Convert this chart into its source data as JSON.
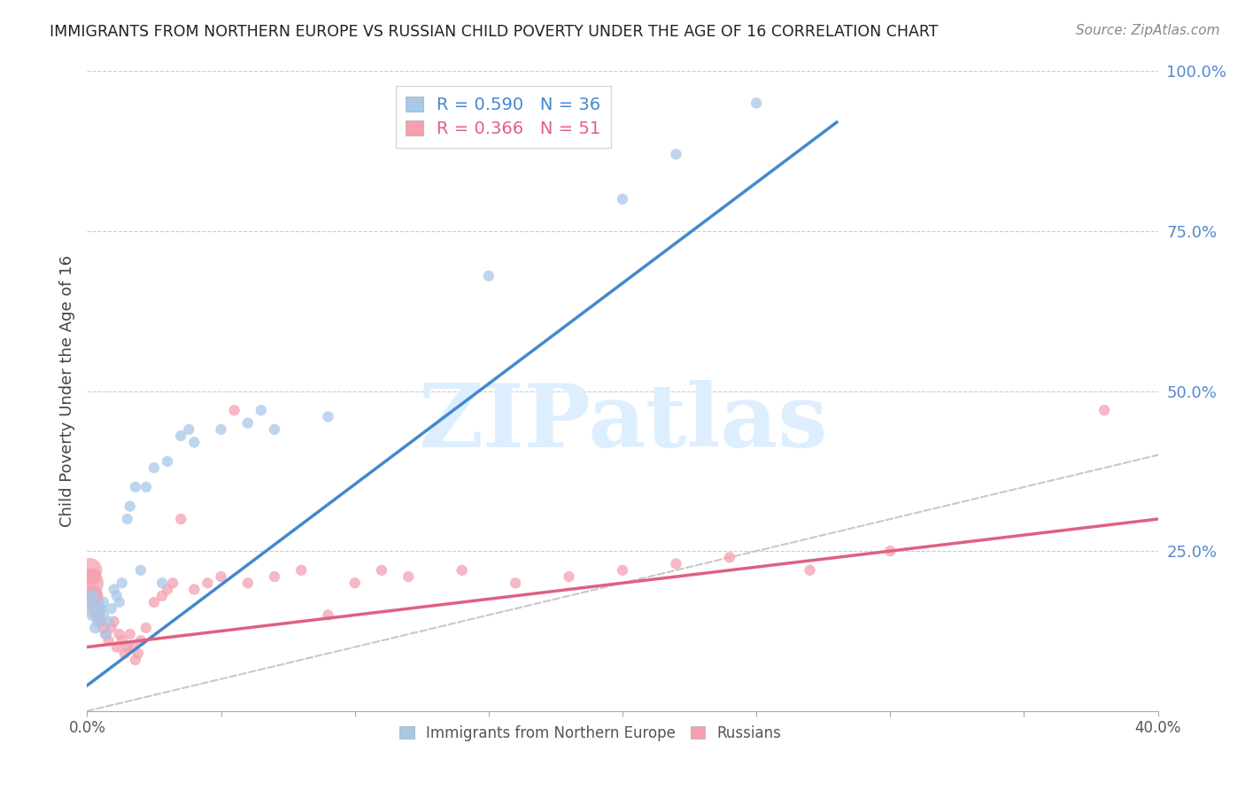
{
  "title": "IMMIGRANTS FROM NORTHERN EUROPE VS RUSSIAN CHILD POVERTY UNDER THE AGE OF 16 CORRELATION CHART",
  "source": "Source: ZipAtlas.com",
  "ylabel": "Child Poverty Under the Age of 16",
  "xlim": [
    0.0,
    0.4
  ],
  "ylim": [
    0.0,
    1.0
  ],
  "blue_R": 0.59,
  "blue_N": 36,
  "pink_R": 0.366,
  "pink_N": 51,
  "legend_label_blue": "Immigrants from Northern Europe",
  "legend_label_pink": "Russians",
  "blue_color": "#a8c8e8",
  "pink_color": "#f4a0b0",
  "blue_line_color": "#4488cc",
  "pink_line_color": "#e06080",
  "right_axis_color": "#5588cc",
  "watermark_color": "#ddeeff",
  "blue_line_x0": 0.0,
  "blue_line_y0": 0.04,
  "blue_line_x1": 0.28,
  "blue_line_y1": 0.92,
  "pink_line_x0": 0.0,
  "pink_line_y0": 0.1,
  "pink_line_x1": 0.4,
  "pink_line_y1": 0.3,
  "blue_scatter_x": [
    0.001,
    0.002,
    0.002,
    0.003,
    0.003,
    0.004,
    0.005,
    0.006,
    0.006,
    0.007,
    0.008,
    0.009,
    0.01,
    0.011,
    0.012,
    0.013,
    0.015,
    0.016,
    0.018,
    0.02,
    0.022,
    0.025,
    0.028,
    0.03,
    0.035,
    0.038,
    0.04,
    0.05,
    0.06,
    0.065,
    0.07,
    0.09,
    0.15,
    0.2,
    0.22,
    0.25
  ],
  "blue_scatter_y": [
    0.17,
    0.18,
    0.15,
    0.16,
    0.13,
    0.14,
    0.16,
    0.15,
    0.17,
    0.12,
    0.14,
    0.16,
    0.19,
    0.18,
    0.17,
    0.2,
    0.3,
    0.32,
    0.35,
    0.22,
    0.35,
    0.38,
    0.2,
    0.39,
    0.43,
    0.44,
    0.42,
    0.44,
    0.45,
    0.47,
    0.44,
    0.46,
    0.68,
    0.8,
    0.87,
    0.95
  ],
  "blue_scatter_sizes": [
    120,
    100,
    100,
    90,
    90,
    90,
    85,
    85,
    85,
    80,
    80,
    80,
    80,
    80,
    80,
    80,
    80,
    80,
    80,
    80,
    80,
    80,
    80,
    80,
    80,
    80,
    80,
    80,
    80,
    80,
    80,
    80,
    80,
    80,
    80,
    80
  ],
  "pink_scatter_x": [
    0.001,
    0.001,
    0.002,
    0.002,
    0.003,
    0.003,
    0.004,
    0.004,
    0.005,
    0.005,
    0.006,
    0.007,
    0.008,
    0.009,
    0.01,
    0.011,
    0.012,
    0.013,
    0.014,
    0.015,
    0.016,
    0.017,
    0.018,
    0.019,
    0.02,
    0.022,
    0.025,
    0.028,
    0.03,
    0.032,
    0.035,
    0.04,
    0.045,
    0.05,
    0.055,
    0.06,
    0.07,
    0.08,
    0.09,
    0.1,
    0.11,
    0.12,
    0.14,
    0.16,
    0.18,
    0.2,
    0.22,
    0.24,
    0.27,
    0.3,
    0.38
  ],
  "pink_scatter_y": [
    0.2,
    0.22,
    0.18,
    0.21,
    0.16,
    0.18,
    0.15,
    0.17,
    0.14,
    0.16,
    0.13,
    0.12,
    0.11,
    0.13,
    0.14,
    0.1,
    0.12,
    0.11,
    0.09,
    0.1,
    0.12,
    0.1,
    0.08,
    0.09,
    0.11,
    0.13,
    0.17,
    0.18,
    0.19,
    0.2,
    0.3,
    0.19,
    0.2,
    0.21,
    0.47,
    0.2,
    0.21,
    0.22,
    0.15,
    0.2,
    0.22,
    0.21,
    0.22,
    0.2,
    0.21,
    0.22,
    0.23,
    0.24,
    0.22,
    0.25,
    0.47
  ],
  "pink_scatter_sizes": [
    500,
    400,
    300,
    200,
    200,
    150,
    120,
    100,
    100,
    90,
    90,
    85,
    80,
    80,
    80,
    80,
    80,
    80,
    80,
    80,
    80,
    80,
    80,
    80,
    80,
    80,
    80,
    80,
    80,
    80,
    80,
    80,
    80,
    80,
    80,
    80,
    80,
    80,
    80,
    80,
    80,
    80,
    80,
    80,
    80,
    80,
    80,
    80,
    80,
    80,
    80
  ]
}
